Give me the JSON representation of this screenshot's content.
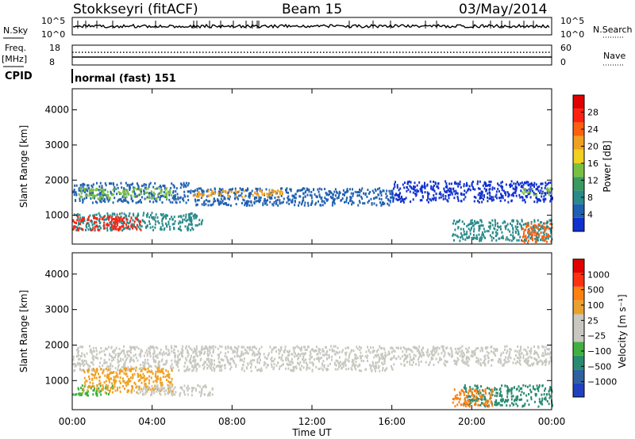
{
  "header": {
    "station": "Stokkseyri (fitACF)",
    "beam": "Beam 15",
    "date": "03/May/2014"
  },
  "status_panels": {
    "nsky_label": "N.Sky",
    "nsky_ticks": [
      "10^5",
      "10^0"
    ],
    "nsearch_label": "N.Search",
    "nsearch_ticks": [
      "10^5",
      "10^0"
    ],
    "freq_label": "Freq.",
    "freq_unit": "[MHz]",
    "freq_ticks": [
      "18",
      "8"
    ],
    "nave_label": "Nave",
    "nave_ticks": [
      "60",
      "0"
    ],
    "cpid_label": "CPID",
    "cpid_value": "normal (fast) 151"
  },
  "colors": {
    "power": [
      "#1030d0",
      "#2060b0",
      "#2a8a8a",
      "#3a9a60",
      "#7ac040",
      "#f0d020",
      "#f0a020",
      "#ff6010",
      "#ff2010",
      "#e00000"
    ],
    "velocity": [
      "#2040c0",
      "#3060a0",
      "#2a8a70",
      "#40b040",
      "#c8c8c0",
      "#c8c8c0",
      "#e8a030",
      "#ff8010",
      "#ff3010",
      "#e00000"
    ]
  },
  "chart_data": [
    {
      "type": "heatmap",
      "panel": "power",
      "ylabel": "Slant Range [km]",
      "yticks": [
        "1000",
        "2000",
        "3000",
        "4000"
      ],
      "ylim": [
        180,
        4600
      ],
      "x_range_hours": [
        0,
        24
      ],
      "colorbar_label": "Power [dB]",
      "colorbar_ticks": [
        "4",
        "8",
        "12",
        "16",
        "20",
        "24",
        "28"
      ],
      "colorbar_range": [
        0,
        32
      ],
      "bands": [
        {
          "x0": 0.0,
          "x1": 5.8,
          "r0": 1380,
          "r1": 1950,
          "color": "#2060b0"
        },
        {
          "x0": 0.3,
          "x1": 5.0,
          "r0": 1500,
          "r1": 1800,
          "color": "#7ac040"
        },
        {
          "x0": 5.8,
          "x1": 16.0,
          "r0": 1300,
          "r1": 1800,
          "color": "#2060b0"
        },
        {
          "x0": 6.0,
          "x1": 10.5,
          "r0": 1550,
          "r1": 1750,
          "color": "#f0a020"
        },
        {
          "x0": 16.0,
          "x1": 24.0,
          "r0": 1400,
          "r1": 2000,
          "color": "#1030d0"
        },
        {
          "x0": 22.5,
          "x1": 24.0,
          "r0": 1600,
          "r1": 1800,
          "color": "#7ac040"
        },
        {
          "x0": 0.0,
          "x1": 6.5,
          "r0": 600,
          "r1": 1100,
          "color": "#2a8a8a"
        },
        {
          "x0": 0.0,
          "x1": 3.5,
          "r0": 600,
          "r1": 1000,
          "color": "#ff2010"
        },
        {
          "x0": 19.0,
          "x1": 24.0,
          "r0": 300,
          "r1": 900,
          "color": "#2a8a8a"
        },
        {
          "x0": 22.5,
          "x1": 24.0,
          "r0": 250,
          "r1": 800,
          "color": "#ff6010"
        }
      ]
    },
    {
      "type": "heatmap",
      "panel": "velocity",
      "ylabel": "Slant Range [km]",
      "yticks": [
        "1000",
        "2000",
        "3000",
        "4000"
      ],
      "ylim": [
        180,
        4600
      ],
      "x_range_hours": [
        0,
        24
      ],
      "xlabel": "Time UT",
      "xticks": [
        "00:00",
        "04:00",
        "08:00",
        "12:00",
        "16:00",
        "20:00",
        "00:00"
      ],
      "colorbar_label": "Velocity [m s⁻¹]",
      "colorbar_ticks": [
        "1000",
        "500",
        "100",
        "25",
        "−25",
        "−100",
        "−500",
        "−1000"
      ],
      "bands": [
        {
          "x0": 0.0,
          "x1": 16.0,
          "r0": 1300,
          "r1": 2000,
          "color": "#c8c8c0"
        },
        {
          "x0": 16.0,
          "x1": 24.0,
          "r0": 1450,
          "r1": 2000,
          "color": "#c8c8c0"
        },
        {
          "x0": 0.0,
          "x1": 2.0,
          "r0": 600,
          "r1": 900,
          "color": "#40b040"
        },
        {
          "x0": 0.5,
          "x1": 5.0,
          "r0": 700,
          "r1": 1400,
          "color": "#f0a020"
        },
        {
          "x0": 3.0,
          "x1": 7.0,
          "r0": 600,
          "r1": 900,
          "color": "#c8c8c0"
        },
        {
          "x0": 19.5,
          "x1": 24.0,
          "r0": 300,
          "r1": 900,
          "color": "#2a8a70"
        },
        {
          "x0": 19.0,
          "x1": 21.0,
          "r0": 300,
          "r1": 800,
          "color": "#ff8010"
        }
      ]
    }
  ]
}
